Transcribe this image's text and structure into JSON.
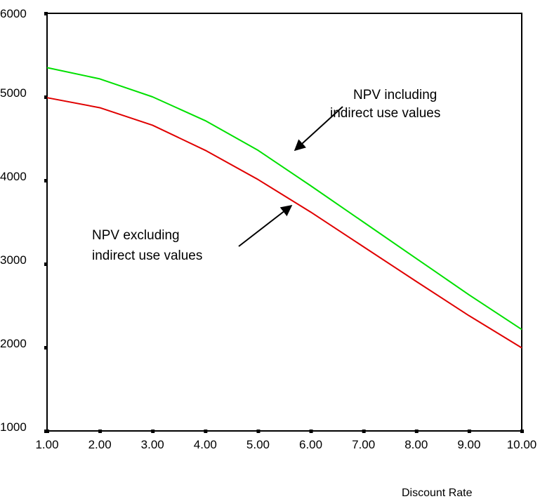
{
  "chart_data": {
    "type": "line",
    "xlabel": "Discount Rate",
    "ylabel": "",
    "x": [
      1,
      2,
      3,
      4,
      5,
      6,
      7,
      8,
      9,
      10
    ],
    "x_tick_labels": [
      "1.00",
      "2.00",
      "3.00",
      "4.00",
      "5.00",
      "6.00",
      "7.00",
      "8.00",
      "9.00",
      "10.00"
    ],
    "y_tick_labels": [
      "1000",
      "2000",
      "3000",
      "4000",
      "5000",
      "6000"
    ],
    "xlim": [
      1,
      10
    ],
    "ylim": [
      1000,
      6000
    ],
    "grid": false,
    "series": [
      {
        "name": "NPV including indirect use values",
        "color": "#00e000",
        "values": [
          5350,
          5215,
          5000,
          4715,
          4360,
          3935,
          3500,
          3065,
          2630,
          2215
        ]
      },
      {
        "name": "NPV excluding indirect use values",
        "color": "#e00000",
        "values": [
          4990,
          4870,
          4660,
          4360,
          4010,
          3620,
          3205,
          2790,
          2380,
          1995
        ]
      }
    ],
    "annotations": [
      {
        "line1": "NPV including",
        "line2": "indirect use values",
        "series": 0
      },
      {
        "line1": "NPV excluding",
        "line2": "indirect use values",
        "series": 1
      }
    ]
  }
}
